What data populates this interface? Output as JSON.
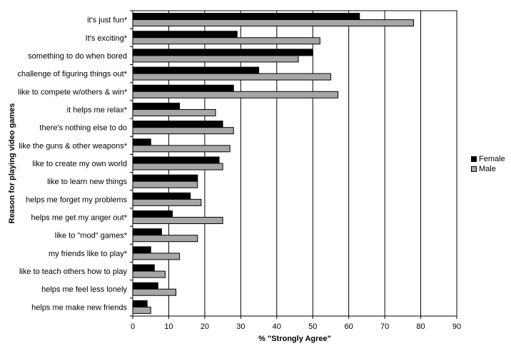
{
  "chart_data": {
    "type": "bar",
    "orientation": "horizontal",
    "categories": [
      "it's just fun*",
      "It's exciting*",
      "something to do when bored",
      "challenge of figuring things out*",
      "like to compete w/others & win*",
      "it helps me relax*",
      "there's nothing else to do",
      "like the guns & other weapons*",
      "like to create my own world",
      "like to learn new things",
      "helps me forget my problems",
      "helps me get my anger out*",
      "like to \"mod\" games*",
      "my friends like to play*",
      "like to teach others how to play",
      "helps me feel less lonely",
      "helps me make new friends"
    ],
    "series": [
      {
        "name": "Female",
        "color": "#000000",
        "values": [
          63,
          29,
          50,
          35,
          28,
          13,
          25,
          5,
          24,
          18,
          16,
          11,
          8,
          5,
          6,
          7,
          4
        ]
      },
      {
        "name": "Male",
        "color": "#a6a6a6",
        "values": [
          78,
          52,
          46,
          55,
          57,
          23,
          28,
          27,
          25,
          18,
          19,
          25,
          18,
          13,
          9,
          12,
          5
        ]
      }
    ],
    "xlabel": "% \"Strongly Agree\"",
    "ylabel": "Reason for playing video games",
    "xlim": [
      0,
      90
    ],
    "xticks": [
      "0",
      "10",
      "20",
      "30",
      "40",
      "50",
      "60",
      "70",
      "80",
      "90"
    ],
    "grid": "vertical",
    "legend_position": "right"
  }
}
